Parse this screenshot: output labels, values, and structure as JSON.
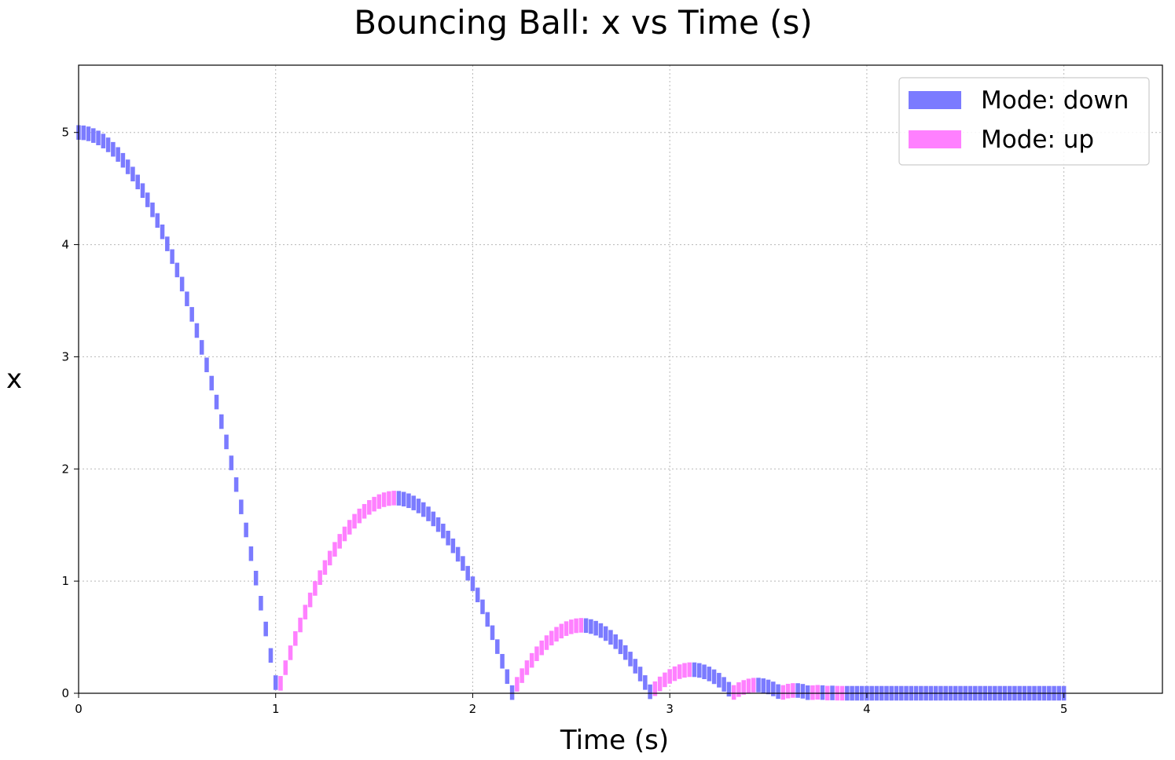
{
  "chart_data": {
    "type": "bar",
    "title": "Bouncing Ball: x vs Time (s)",
    "xlabel": "Time (s)",
    "ylabel": "x",
    "xlim": [
      0,
      5.5
    ],
    "ylim": [
      0,
      5.6
    ],
    "xticks": [
      "0",
      "1",
      "2",
      "3",
      "4",
      "5"
    ],
    "yticks": [
      "0",
      "1",
      "2",
      "3",
      "4",
      "5"
    ],
    "grid": true,
    "legend_position": "top-right",
    "bar_width": 0.022,
    "series": [
      {
        "name": "Mode: down",
        "color": "#7b7bff"
      },
      {
        "name": "Mode: up",
        "color": "#ff80ff"
      }
    ],
    "model": {
      "g": 9.81,
      "x0": 5,
      "restitution": 0.59,
      "end_time": 5,
      "sample_step": 0.025
    }
  }
}
